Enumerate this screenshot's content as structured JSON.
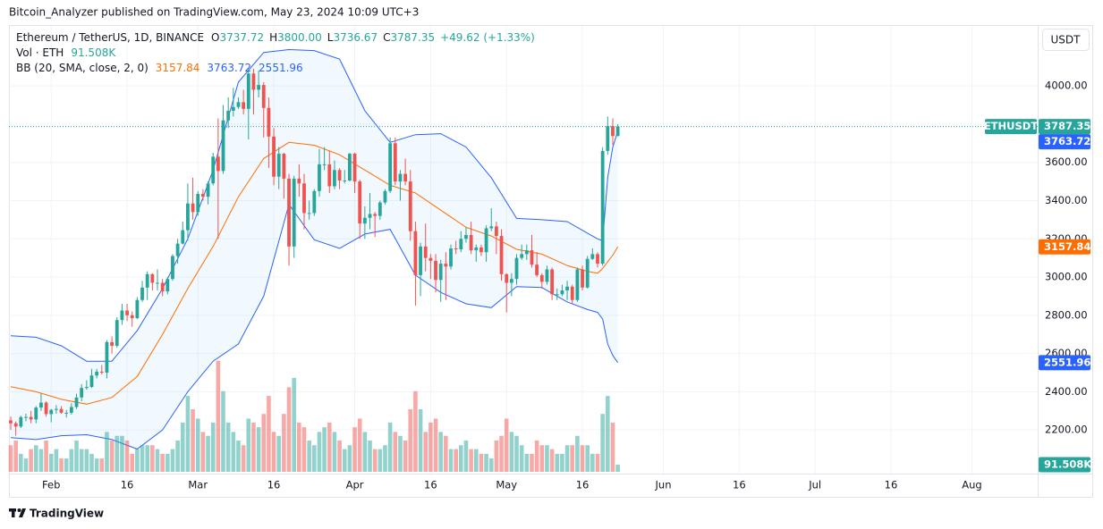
{
  "header": {
    "publisher": "Bitcoin_Analyzer published on TradingView.com, May 23, 2024 10:09 UTC+3",
    "brand": "TradingView"
  },
  "chart_data": {
    "type": "candlestick",
    "symbol": "Ethereum / TetherUS, 1D, BINANCE",
    "ticker": "ETHUSDT",
    "currency": "USDT",
    "legend": {
      "o_label": "O",
      "h_label": "H",
      "high_label": "3800.00",
      "l_label": "L",
      "c_label": "C",
      "change": "+49.62 (+1.33%)",
      "volume_title": "Vol · ETH",
      "bb_title": "BB (20, SMA, close, 2, 0)"
    },
    "up_color": "#26a69a",
    "down_color": "#ef5350",
    "x": [
      "2024-01-24",
      "2024-01-25",
      "2024-01-26",
      "2024-01-27",
      "2024-01-28",
      "2024-01-29",
      "2024-01-30",
      "2024-01-31",
      "2024-02-01",
      "2024-02-02",
      "2024-02-03",
      "2024-02-04",
      "2024-02-05",
      "2024-02-06",
      "2024-02-07",
      "2024-02-08",
      "2024-02-09",
      "2024-02-10",
      "2024-02-11",
      "2024-02-12",
      "2024-02-13",
      "2024-02-14",
      "2024-02-15",
      "2024-02-16",
      "2024-02-17",
      "2024-02-18",
      "2024-02-19",
      "2024-02-20",
      "2024-02-21",
      "2024-02-22",
      "2024-02-23",
      "2024-02-24",
      "2024-02-25",
      "2024-02-26",
      "2024-02-27",
      "2024-02-28",
      "2024-02-29",
      "2024-03-01",
      "2024-03-02",
      "2024-03-03",
      "2024-03-04",
      "2024-03-05",
      "2024-03-06",
      "2024-03-07",
      "2024-03-08",
      "2024-03-09",
      "2024-03-10",
      "2024-03-11",
      "2024-03-12",
      "2024-03-13",
      "2024-03-14",
      "2024-03-15",
      "2024-03-16",
      "2024-03-17",
      "2024-03-18",
      "2024-03-19",
      "2024-03-20",
      "2024-03-21",
      "2024-03-22",
      "2024-03-23",
      "2024-03-24",
      "2024-03-25",
      "2024-03-26",
      "2024-03-27",
      "2024-03-28",
      "2024-03-29",
      "2024-03-30",
      "2024-03-31",
      "2024-04-01",
      "2024-04-02",
      "2024-04-03",
      "2024-04-04",
      "2024-04-05",
      "2024-04-06",
      "2024-04-07",
      "2024-04-08",
      "2024-04-09",
      "2024-04-10",
      "2024-04-11",
      "2024-04-12",
      "2024-04-13",
      "2024-04-14",
      "2024-04-15",
      "2024-04-16",
      "2024-04-17",
      "2024-04-18",
      "2024-04-19",
      "2024-04-20",
      "2024-04-21",
      "2024-04-22",
      "2024-04-23",
      "2024-04-24",
      "2024-04-25",
      "2024-04-26",
      "2024-04-27",
      "2024-04-28",
      "2024-04-29",
      "2024-04-30",
      "2024-05-01",
      "2024-05-02",
      "2024-05-03",
      "2024-05-04",
      "2024-05-05",
      "2024-05-06",
      "2024-05-07",
      "2024-05-08",
      "2024-05-09",
      "2024-05-10",
      "2024-05-11",
      "2024-05-12",
      "2024-05-13",
      "2024-05-14",
      "2024-05-15",
      "2024-05-16",
      "2024-05-17",
      "2024-05-18",
      "2024-05-19",
      "2024-05-20",
      "2024-05-21",
      "2024-05-22",
      "2024-05-23"
    ],
    "ohlc": [
      [
        2250,
        2270,
        2200,
        2235
      ],
      [
        2235,
        2245,
        2170,
        2218
      ],
      [
        2218,
        2275,
        2210,
        2267
      ],
      [
        2267,
        2285,
        2245,
        2268
      ],
      [
        2268,
        2300,
        2235,
        2255
      ],
      [
        2255,
        2325,
        2235,
        2317
      ],
      [
        2317,
        2390,
        2300,
        2343
      ],
      [
        2343,
        2350,
        2270,
        2283
      ],
      [
        2283,
        2310,
        2240,
        2305
      ],
      [
        2305,
        2330,
        2285,
        2310
      ],
      [
        2310,
        2325,
        2285,
        2290
      ],
      [
        2290,
        2305,
        2265,
        2290
      ],
      [
        2290,
        2340,
        2280,
        2320
      ],
      [
        2320,
        2390,
        2310,
        2370
      ],
      [
        2370,
        2440,
        2350,
        2420
      ],
      [
        2420,
        2460,
        2410,
        2425
      ],
      [
        2425,
        2520,
        2420,
        2485
      ],
      [
        2485,
        2520,
        2470,
        2505
      ],
      [
        2505,
        2540,
        2490,
        2500
      ],
      [
        2500,
        2670,
        2470,
        2660
      ],
      [
        2660,
        2690,
        2600,
        2640
      ],
      [
        2640,
        2790,
        2630,
        2775
      ],
      [
        2775,
        2860,
        2750,
        2825
      ],
      [
        2825,
        2860,
        2770,
        2800
      ],
      [
        2800,
        2820,
        2740,
        2785
      ],
      [
        2785,
        2895,
        2780,
        2880
      ],
      [
        2880,
        2980,
        2870,
        2945
      ],
      [
        2945,
        3030,
        2880,
        3015
      ],
      [
        3015,
        3020,
        2930,
        2970
      ],
      [
        2970,
        3040,
        2930,
        2970
      ],
      [
        2970,
        2990,
        2900,
        2925
      ],
      [
        2925,
        3000,
        2910,
        2990
      ],
      [
        2990,
        3120,
        2980,
        3110
      ],
      [
        3110,
        3200,
        3070,
        3175
      ],
      [
        3175,
        3290,
        3170,
        3245
      ],
      [
        3245,
        3490,
        3190,
        3385
      ],
      [
        3385,
        3520,
        3300,
        3340
      ],
      [
        3340,
        3450,
        3320,
        3435
      ],
      [
        3435,
        3460,
        3400,
        3420
      ],
      [
        3420,
        3500,
        3380,
        3490
      ],
      [
        3490,
        3650,
        3480,
        3630
      ],
      [
        3630,
        3830,
        3200,
        3555
      ],
      [
        3555,
        3900,
        3540,
        3820
      ],
      [
        3820,
        3940,
        3780,
        3870
      ],
      [
        3870,
        3990,
        3840,
        3890
      ],
      [
        3890,
        3940,
        3880,
        3915
      ],
      [
        3915,
        3980,
        3850,
        3880
      ],
      [
        3880,
        4090,
        3720,
        4065
      ],
      [
        4065,
        4090,
        3850,
        3980
      ],
      [
        3980,
        4080,
        3940,
        4005
      ],
      [
        4005,
        4020,
        3730,
        3885
      ],
      [
        3885,
        3940,
        3570,
        3735
      ],
      [
        3735,
        3780,
        3480,
        3525
      ],
      [
        3525,
        3680,
        3460,
        3645
      ],
      [
        3645,
        3650,
        3410,
        3515
      ],
      [
        3515,
        3540,
        3060,
        3160
      ],
      [
        3160,
        3530,
        3100,
        3515
      ],
      [
        3515,
        3590,
        3420,
        3490
      ],
      [
        3490,
        3540,
        3250,
        3335
      ],
      [
        3335,
        3400,
        3300,
        3335
      ],
      [
        3335,
        3460,
        3320,
        3450
      ],
      [
        3450,
        3670,
        3420,
        3590
      ],
      [
        3590,
        3680,
        3560,
        3590
      ],
      [
        3590,
        3660,
        3440,
        3475
      ],
      [
        3475,
        3610,
        3460,
        3560
      ],
      [
        3560,
        3570,
        3460,
        3505
      ],
      [
        3505,
        3560,
        3490,
        3505
      ],
      [
        3505,
        3650,
        3500,
        3645
      ],
      [
        3645,
        3650,
        3440,
        3500
      ],
      [
        3500,
        3510,
        3200,
        3280
      ],
      [
        3280,
        3370,
        3200,
        3310
      ],
      [
        3310,
        3440,
        3250,
        3330
      ],
      [
        3330,
        3340,
        3210,
        3320
      ],
      [
        3320,
        3400,
        3300,
        3390
      ],
      [
        3390,
        3460,
        3380,
        3450
      ],
      [
        3450,
        3730,
        3440,
        3700
      ],
      [
        3700,
        3730,
        3480,
        3500
      ],
      [
        3500,
        3560,
        3400,
        3540
      ],
      [
        3540,
        3620,
        3480,
        3500
      ],
      [
        3500,
        3560,
        3190,
        3240
      ],
      [
        3240,
        3290,
        2850,
        3010
      ],
      [
        3010,
        3180,
        2900,
        3160
      ],
      [
        3160,
        3280,
        3030,
        3100
      ],
      [
        3100,
        3120,
        2990,
        3085
      ],
      [
        3085,
        3120,
        2920,
        2985
      ],
      [
        2985,
        3090,
        2870,
        3070
      ],
      [
        3070,
        3130,
        2880,
        3055
      ],
      [
        3055,
        3170,
        3040,
        3150
      ],
      [
        3150,
        3190,
        3120,
        3145
      ],
      [
        3145,
        3240,
        3130,
        3200
      ],
      [
        3200,
        3260,
        3180,
        3220
      ],
      [
        3220,
        3290,
        3120,
        3140
      ],
      [
        3140,
        3170,
        3080,
        3155
      ],
      [
        3155,
        3170,
        3110,
        3130
      ],
      [
        3130,
        3270,
        3080,
        3255
      ],
      [
        3255,
        3360,
        3240,
        3265
      ],
      [
        3265,
        3290,
        3120,
        3215
      ],
      [
        3215,
        3250,
        2980,
        3015
      ],
      [
        3015,
        3020,
        2815,
        2970
      ],
      [
        2970,
        3020,
        2900,
        2990
      ],
      [
        2990,
        3120,
        2960,
        3100
      ],
      [
        3100,
        3170,
        3090,
        3120
      ],
      [
        3120,
        3170,
        3090,
        3140
      ],
      [
        3140,
        3220,
        3050,
        3065
      ],
      [
        3065,
        3130,
        3000,
        3010
      ],
      [
        3010,
        3020,
        2940,
        2975
      ],
      [
        2975,
        3060,
        2960,
        3040
      ],
      [
        3040,
        3050,
        2880,
        2910
      ],
      [
        2910,
        2940,
        2880,
        2910
      ],
      [
        2910,
        2960,
        2900,
        2930
      ],
      [
        2930,
        2980,
        2880,
        2950
      ],
      [
        2950,
        2960,
        2860,
        2880
      ],
      [
        2880,
        3050,
        2870,
        3040
      ],
      [
        3040,
        3060,
        2930,
        2945
      ],
      [
        2945,
        3110,
        2940,
        3095
      ],
      [
        3095,
        3150,
        3090,
        3120
      ],
      [
        3120,
        3130,
        3050,
        3070
      ],
      [
        3070,
        3680,
        3060,
        3660
      ],
      [
        3660,
        3840,
        3640,
        3790
      ],
      [
        3790,
        3830,
        3690,
        3737.72
      ],
      [
        3737.72,
        3800,
        3736.67,
        3787.35
      ]
    ],
    "volume": {
      "lim": [
        0,
        5700000
      ],
      "last_label": "91.508K",
      "values": [
        340000,
        400000,
        230000,
        170000,
        290000,
        340000,
        290000,
        400000,
        230000,
        290000,
        170000,
        170000,
        290000,
        400000,
        290000,
        290000,
        230000,
        170000,
        170000,
        510000,
        400000,
        460000,
        460000,
        400000,
        230000,
        290000,
        340000,
        340000,
        340000,
        290000,
        230000,
        230000,
        290000,
        400000,
        630000,
        970000,
        800000,
        680000,
        510000,
        460000,
        630000,
        1420000,
        1030000,
        630000,
        510000,
        400000,
        340000,
        680000,
        630000,
        570000,
        740000,
        970000,
        510000,
        460000,
        740000,
        1080000,
        1200000,
        630000,
        570000,
        400000,
        340000,
        510000,
        570000,
        630000,
        510000,
        400000,
        290000,
        340000,
        570000,
        680000,
        510000,
        400000,
        290000,
        290000,
        340000,
        630000,
        510000,
        460000,
        400000,
        800000,
        1030000,
        800000,
        510000,
        630000,
        680000,
        510000,
        460000,
        290000,
        290000,
        340000,
        400000,
        290000,
        290000,
        230000,
        230000,
        170000,
        400000,
        460000,
        680000,
        510000,
        460000,
        340000,
        230000,
        230000,
        400000,
        340000,
        340000,
        290000,
        230000,
        230000,
        340000,
        340000,
        460000,
        340000,
        340000,
        230000,
        230000,
        740000,
        970000,
        630000,
        91508
      ]
    },
    "bands": {
      "fill": "rgba(33,150,243,0.06)",
      "x": [
        "2024-01-24",
        "2024-01-29",
        "2024-02-03",
        "2024-02-08",
        "2024-02-13",
        "2024-02-18",
        "2024-02-23",
        "2024-02-28",
        "2024-03-04",
        "2024-03-09",
        "2024-03-14",
        "2024-03-19",
        "2024-03-24",
        "2024-03-29",
        "2024-04-03",
        "2024-04-08",
        "2024-04-13",
        "2024-04-18",
        "2024-04-23",
        "2024-04-28",
        "2024-05-03",
        "2024-05-08",
        "2024-05-13",
        "2024-05-17",
        "2024-05-19",
        "2024-05-20",
        "2024-05-21",
        "2024-05-22",
        "2024-05-23"
      ],
      "basis": {
        "color": "#ff6d00",
        "values": [
          2426,
          2400,
          2360,
          2335,
          2370,
          2480,
          2700,
          2940,
          3160,
          3420,
          3620,
          3705,
          3690,
          3640,
          3560,
          3480,
          3440,
          3350,
          3260,
          3215,
          3145,
          3120,
          3060,
          3030,
          3020,
          3045,
          3080,
          3115,
          3157.84
        ]
      },
      "upper": {
        "color": "#2962ff",
        "values": [
          2693,
          2685,
          2640,
          2560,
          2560,
          2720,
          2940,
          3200,
          3560,
          4020,
          4175,
          4190,
          4185,
          4140,
          3870,
          3705,
          3745,
          3750,
          3680,
          3520,
          3307,
          3300,
          3290,
          3230,
          3200,
          3190,
          3520,
          3680,
          3763.72
        ]
      },
      "lower": {
        "color": "#2962ff",
        "values": [
          2160,
          2150,
          2170,
          2175,
          2150,
          2100,
          2200,
          2400,
          2560,
          2650,
          2900,
          3380,
          3195,
          3150,
          3225,
          3250,
          3010,
          2920,
          2860,
          2840,
          2950,
          2945,
          2870,
          2830,
          2815,
          2780,
          2650,
          2590,
          2551.96
        ]
      }
    },
    "xlim": [
      "2024-01-24",
      "2024-08-14"
    ],
    "xticks": [
      {
        "value": "2024-02-01",
        "label": "Feb"
      },
      {
        "value": "2024-02-16",
        "label": "16"
      },
      {
        "value": "2024-03-01",
        "label": "Mar"
      },
      {
        "value": "2024-03-16",
        "label": "16"
      },
      {
        "value": "2024-04-01",
        "label": "Apr"
      },
      {
        "value": "2024-04-16",
        "label": "16"
      },
      {
        "value": "2024-05-01",
        "label": "May"
      },
      {
        "value": "2024-05-16",
        "label": "16"
      },
      {
        "value": "2024-06-01",
        "label": "Jun"
      },
      {
        "value": "2024-06-16",
        "label": "16"
      },
      {
        "value": "2024-07-01",
        "label": "Jul"
      },
      {
        "value": "2024-07-16",
        "label": "16"
      },
      {
        "value": "2024-08-01",
        "label": "Aug"
      }
    ],
    "ylim": [
      1981,
      4314
    ],
    "yticks": [
      {
        "value": 2200,
        "label": "2200.00"
      },
      {
        "value": 2400,
        "label": "2400.00"
      },
      {
        "value": 2600,
        "label": "2600.00"
      },
      {
        "value": 2800,
        "label": "2800.00"
      },
      {
        "value": 3000,
        "label": "3000.00"
      },
      {
        "value": 3200,
        "label": "3200.00"
      },
      {
        "value": 3400,
        "label": "3400.00"
      },
      {
        "value": 3600,
        "label": "3600.00"
      },
      {
        "value": 3800,
        "label": "3800.00"
      },
      {
        "value": 4000,
        "label": "4000.00"
      }
    ],
    "grid": true
  }
}
